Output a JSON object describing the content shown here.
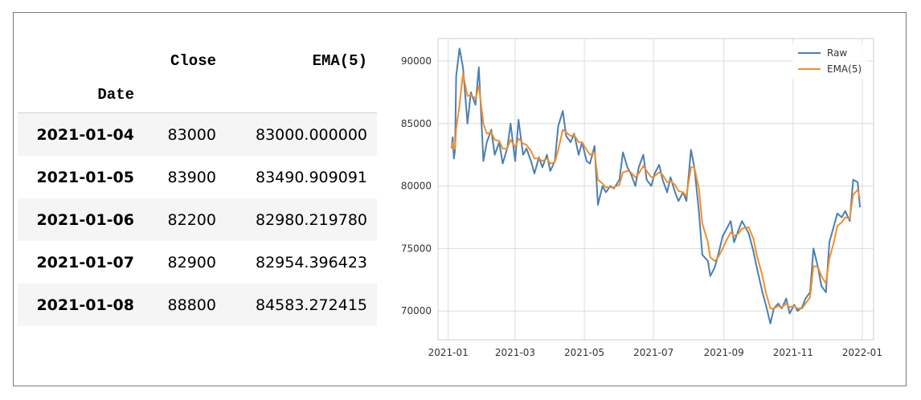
{
  "table": {
    "columns": [
      "Close",
      "EMA(5)"
    ],
    "index_name": "Date",
    "rows": [
      {
        "date": "2021-01-04",
        "close": "83000",
        "ema": "83000.000000"
      },
      {
        "date": "2021-01-05",
        "close": "83900",
        "ema": "83490.909091"
      },
      {
        "date": "2021-01-06",
        "close": "82200",
        "ema": "82980.219780"
      },
      {
        "date": "2021-01-07",
        "close": "82900",
        "ema": "82954.396423"
      },
      {
        "date": "2021-01-08",
        "close": "88800",
        "ema": "84583.272415"
      }
    ]
  },
  "chart_data": {
    "type": "line",
    "grid": true,
    "legend_position": "top-right",
    "x_ticks": [
      "2021-01",
      "2021-03",
      "2021-05",
      "2021-07",
      "2021-09",
      "2021-11",
      "2022-01"
    ],
    "y_ticks": [
      "70000",
      "75000",
      "80000",
      "85000",
      "90000"
    ],
    "xlim": [
      "2020-12-23",
      "2022-01-11"
    ],
    "ylim": [
      67700,
      91800
    ],
    "colors": {
      "Raw": "#4a7fb5",
      "EMA(5)": "#f28e2b"
    },
    "series": [
      {
        "name": "Raw",
        "points": [
          [
            "2021-01-04",
            83000
          ],
          [
            "2021-01-05",
            83900
          ],
          [
            "2021-01-06",
            82200
          ],
          [
            "2021-01-07",
            82900
          ],
          [
            "2021-01-08",
            88800
          ],
          [
            "2021-01-11",
            91000
          ],
          [
            "2021-01-14",
            89500
          ],
          [
            "2021-01-18",
            85000
          ],
          [
            "2021-01-21",
            87500
          ],
          [
            "2021-01-25",
            86500
          ],
          [
            "2021-01-28",
            89500
          ],
          [
            "2021-02-01",
            82000
          ],
          [
            "2021-02-04",
            83500
          ],
          [
            "2021-02-08",
            84500
          ],
          [
            "2021-02-11",
            82500
          ],
          [
            "2021-02-15",
            83500
          ],
          [
            "2021-02-18",
            81800
          ],
          [
            "2021-02-22",
            83000
          ],
          [
            "2021-02-25",
            85000
          ],
          [
            "2021-03-01",
            82000
          ],
          [
            "2021-03-04",
            85300
          ],
          [
            "2021-03-08",
            82500
          ],
          [
            "2021-03-11",
            83000
          ],
          [
            "2021-03-15",
            82000
          ],
          [
            "2021-03-18",
            81000
          ],
          [
            "2021-03-22",
            82300
          ],
          [
            "2021-03-25",
            81500
          ],
          [
            "2021-03-29",
            82500
          ],
          [
            "2021-04-01",
            81200
          ],
          [
            "2021-04-05",
            82000
          ],
          [
            "2021-04-08",
            84800
          ],
          [
            "2021-04-12",
            86000
          ],
          [
            "2021-04-15",
            84000
          ],
          [
            "2021-04-19",
            83500
          ],
          [
            "2021-04-22",
            84200
          ],
          [
            "2021-04-26",
            82500
          ],
          [
            "2021-04-29",
            83500
          ],
          [
            "2021-05-03",
            82000
          ],
          [
            "2021-05-06",
            81800
          ],
          [
            "2021-05-10",
            83200
          ],
          [
            "2021-05-13",
            78500
          ],
          [
            "2021-05-17",
            80000
          ],
          [
            "2021-05-20",
            79500
          ],
          [
            "2021-05-24",
            80000
          ],
          [
            "2021-05-27",
            79800
          ],
          [
            "2021-06-01",
            80500
          ],
          [
            "2021-06-04",
            82700
          ],
          [
            "2021-06-08",
            81500
          ],
          [
            "2021-06-11",
            81000
          ],
          [
            "2021-06-15",
            80000
          ],
          [
            "2021-06-18",
            81500
          ],
          [
            "2021-06-22",
            82500
          ],
          [
            "2021-06-25",
            80500
          ],
          [
            "2021-06-29",
            80000
          ],
          [
            "2021-07-02",
            81000
          ],
          [
            "2021-07-06",
            81700
          ],
          [
            "2021-07-09",
            80500
          ],
          [
            "2021-07-13",
            79500
          ],
          [
            "2021-07-16",
            80700
          ],
          [
            "2021-07-20",
            79500
          ],
          [
            "2021-07-23",
            78800
          ],
          [
            "2021-07-27",
            79500
          ],
          [
            "2021-07-30",
            78800
          ],
          [
            "2021-08-03",
            82900
          ],
          [
            "2021-08-06",
            81500
          ],
          [
            "2021-08-10",
            78000
          ],
          [
            "2021-08-13",
            74500
          ],
          [
            "2021-08-18",
            74000
          ],
          [
            "2021-08-20",
            72800
          ],
          [
            "2021-08-24",
            73500
          ],
          [
            "2021-08-27",
            74500
          ],
          [
            "2021-08-31",
            76000
          ],
          [
            "2021-09-03",
            76500
          ],
          [
            "2021-09-07",
            77200
          ],
          [
            "2021-09-10",
            75500
          ],
          [
            "2021-09-14",
            76500
          ],
          [
            "2021-09-17",
            77200
          ],
          [
            "2021-09-23",
            76200
          ],
          [
            "2021-09-27",
            74800
          ],
          [
            "2021-09-30",
            73500
          ],
          [
            "2021-10-05",
            71500
          ],
          [
            "2021-10-08",
            70500
          ],
          [
            "2021-10-12",
            69000
          ],
          [
            "2021-10-15",
            70200
          ],
          [
            "2021-10-19",
            70600
          ],
          [
            "2021-10-22",
            70200
          ],
          [
            "2021-10-26",
            71000
          ],
          [
            "2021-10-29",
            69800
          ],
          [
            "2021-11-02",
            70500
          ],
          [
            "2021-11-05",
            70000
          ],
          [
            "2021-11-09",
            70300
          ],
          [
            "2021-11-12",
            71000
          ],
          [
            "2021-11-16",
            71500
          ],
          [
            "2021-11-19",
            75000
          ],
          [
            "2021-11-23",
            73500
          ],
          [
            "2021-11-26",
            72000
          ],
          [
            "2021-11-30",
            71500
          ],
          [
            "2021-12-03",
            75500
          ],
          [
            "2021-12-07",
            76800
          ],
          [
            "2021-12-10",
            77800
          ],
          [
            "2021-12-14",
            77500
          ],
          [
            "2021-12-17",
            78000
          ],
          [
            "2021-12-21",
            77200
          ],
          [
            "2021-12-24",
            80500
          ],
          [
            "2021-12-28",
            80300
          ],
          [
            "2021-12-30",
            78300
          ]
        ]
      },
      {
        "name": "EMA(5)",
        "points": [
          [
            "2021-01-04",
            83000
          ],
          [
            "2021-01-05",
            83491
          ],
          [
            "2021-01-06",
            82980
          ],
          [
            "2021-01-07",
            82954
          ],
          [
            "2021-01-08",
            84583
          ],
          [
            "2021-01-11",
            86500
          ],
          [
            "2021-01-14",
            89000
          ],
          [
            "2021-01-18",
            87200
          ],
          [
            "2021-01-21",
            87300
          ],
          [
            "2021-01-25",
            87000
          ],
          [
            "2021-01-28",
            88000
          ],
          [
            "2021-02-01",
            85000
          ],
          [
            "2021-02-04",
            84200
          ],
          [
            "2021-02-08",
            84300
          ],
          [
            "2021-02-11",
            83700
          ],
          [
            "2021-02-15",
            83600
          ],
          [
            "2021-02-18",
            83000
          ],
          [
            "2021-02-22",
            83000
          ],
          [
            "2021-02-25",
            83700
          ],
          [
            "2021-03-01",
            83100
          ],
          [
            "2021-03-04",
            83800
          ],
          [
            "2021-03-08",
            83400
          ],
          [
            "2021-03-11",
            83300
          ],
          [
            "2021-03-15",
            82800
          ],
          [
            "2021-03-18",
            82200
          ],
          [
            "2021-03-22",
            82200
          ],
          [
            "2021-03-25",
            82000
          ],
          [
            "2021-03-29",
            82200
          ],
          [
            "2021-04-01",
            81800
          ],
          [
            "2021-04-05",
            81900
          ],
          [
            "2021-04-08",
            82900
          ],
          [
            "2021-04-12",
            84500
          ],
          [
            "2021-04-15",
            84300
          ],
          [
            "2021-04-19",
            84000
          ],
          [
            "2021-04-22",
            84100
          ],
          [
            "2021-04-26",
            83500
          ],
          [
            "2021-04-29",
            83500
          ],
          [
            "2021-05-03",
            82900
          ],
          [
            "2021-05-06",
            82500
          ],
          [
            "2021-05-10",
            82700
          ],
          [
            "2021-05-13",
            80500
          ],
          [
            "2021-05-17",
            80200
          ],
          [
            "2021-05-20",
            79900
          ],
          [
            "2021-05-24",
            79900
          ],
          [
            "2021-05-27",
            79900
          ],
          [
            "2021-06-01",
            80100
          ],
          [
            "2021-06-04",
            81100
          ],
          [
            "2021-06-08",
            81200
          ],
          [
            "2021-06-11",
            81100
          ],
          [
            "2021-06-15",
            80700
          ],
          [
            "2021-06-18",
            81000
          ],
          [
            "2021-06-22",
            81600
          ],
          [
            "2021-06-25",
            81200
          ],
          [
            "2021-06-29",
            80700
          ],
          [
            "2021-07-02",
            80800
          ],
          [
            "2021-07-06",
            81100
          ],
          [
            "2021-07-09",
            80900
          ],
          [
            "2021-07-13",
            80300
          ],
          [
            "2021-07-16",
            80400
          ],
          [
            "2021-07-20",
            80100
          ],
          [
            "2021-07-23",
            79600
          ],
          [
            "2021-07-27",
            79500
          ],
          [
            "2021-07-30",
            79200
          ],
          [
            "2021-08-03",
            81500
          ],
          [
            "2021-08-06",
            81500
          ],
          [
            "2021-08-10",
            79800
          ],
          [
            "2021-08-13",
            77000
          ],
          [
            "2021-08-18",
            75500
          ],
          [
            "2021-08-20",
            74300
          ],
          [
            "2021-08-24",
            74000
          ],
          [
            "2021-08-27",
            74300
          ],
          [
            "2021-08-31",
            75000
          ],
          [
            "2021-09-03",
            75600
          ],
          [
            "2021-09-07",
            76300
          ],
          [
            "2021-09-10",
            76000
          ],
          [
            "2021-09-14",
            76200
          ],
          [
            "2021-09-17",
            76600
          ],
          [
            "2021-09-23",
            76700
          ],
          [
            "2021-09-27",
            75800
          ],
          [
            "2021-09-30",
            74500
          ],
          [
            "2021-10-05",
            72800
          ],
          [
            "2021-10-08",
            71500
          ],
          [
            "2021-10-12",
            70200
          ],
          [
            "2021-10-15",
            70200
          ],
          [
            "2021-10-19",
            70400
          ],
          [
            "2021-10-22",
            70300
          ],
          [
            "2021-10-26",
            70600
          ],
          [
            "2021-10-29",
            70300
          ],
          [
            "2021-11-02",
            70400
          ],
          [
            "2021-11-05",
            70200
          ],
          [
            "2021-11-09",
            70200
          ],
          [
            "2021-11-12",
            70600
          ],
          [
            "2021-11-16",
            71100
          ],
          [
            "2021-11-19",
            73600
          ],
          [
            "2021-11-23",
            73500
          ],
          [
            "2021-11-26",
            72800
          ],
          [
            "2021-11-30",
            72200
          ],
          [
            "2021-12-03",
            74200
          ],
          [
            "2021-12-07",
            75500
          ],
          [
            "2021-12-10",
            76800
          ],
          [
            "2021-12-14",
            77100
          ],
          [
            "2021-12-17",
            77500
          ],
          [
            "2021-12-21",
            77400
          ],
          [
            "2021-12-24",
            79300
          ],
          [
            "2021-12-28",
            79700
          ],
          [
            "2021-12-30",
            79000
          ]
        ]
      }
    ]
  }
}
